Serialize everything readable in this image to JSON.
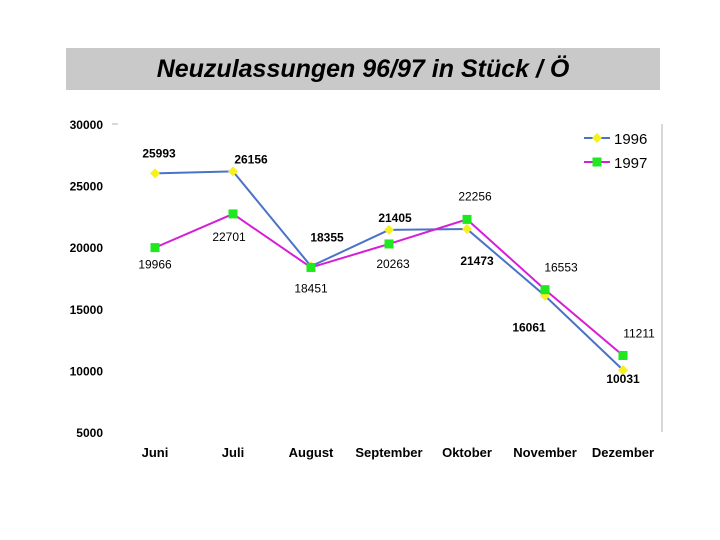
{
  "chart_data": {
    "type": "line",
    "title": "Neuzulassungen 96/97 in Stück / Ö",
    "categories": [
      "Juni",
      "Juli",
      "August",
      "September",
      "Oktober",
      "November",
      "Dezember"
    ],
    "series": [
      {
        "name": "1996",
        "color": "#4a72c8",
        "marker_color": "#f5f01e",
        "marker": "diamond",
        "values": [
          25993,
          26156,
          18451,
          21405,
          21473,
          16061,
          10031
        ]
      },
      {
        "name": "1997",
        "color": "#d61ed6",
        "marker_color": "#1ee81e",
        "marker": "square",
        "values": [
          19966,
          22701,
          18355,
          20263,
          22256,
          16553,
          11211
        ]
      }
    ],
    "point_labels": [
      [
        "25993",
        "26156",
        "18451",
        "21405",
        "21473",
        "16061",
        "10031"
      ],
      [
        "19966",
        "22701",
        "18355",
        "20263",
        "22256",
        "16553",
        "11211"
      ]
    ],
    "yticks": [
      30000,
      25000,
      20000,
      15000,
      10000,
      5000
    ],
    "ylim": [
      5000,
      30000
    ],
    "legend_position": "top-right",
    "grid": false
  }
}
